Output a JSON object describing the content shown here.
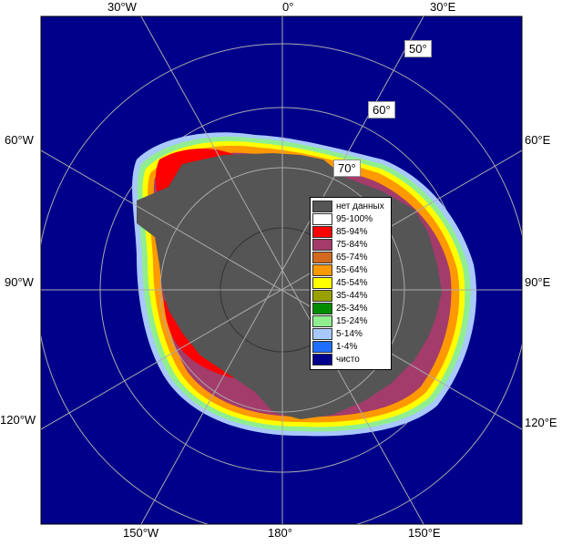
{
  "map": {
    "ocean_color": "#00008b",
    "no_data_color": "#555555",
    "graticule_color": "#aaaaaa",
    "top_labels": [
      "30°W",
      "0°",
      "30°E"
    ],
    "bottom_labels": [
      "150°W",
      "180°",
      "150°E"
    ],
    "left_labels": [
      "60°W",
      "90°W",
      "120°W"
    ],
    "right_labels": [
      "60°E",
      "90°E",
      "120°E"
    ],
    "lat_labels": [
      "50°",
      "60°",
      "70°"
    ]
  },
  "legend": {
    "items": [
      {
        "label": "нет данных",
        "color": "#555555"
      },
      {
        "label": "95-100%",
        "color": "#ffffff"
      },
      {
        "label": "85-94%",
        "color": "#ff0000"
      },
      {
        "label": "75-84%",
        "color": "#a33b6b"
      },
      {
        "label": "65-74%",
        "color": "#d2691e"
      },
      {
        "label": "55-64%",
        "color": "#ff9900"
      },
      {
        "label": "45-54%",
        "color": "#ffff00"
      },
      {
        "label": "35-44%",
        "color": "#9aa000"
      },
      {
        "label": "25-34%",
        "color": "#008c00"
      },
      {
        "label": "15-24%",
        "color": "#90ee90"
      },
      {
        "label": "5-14%",
        "color": "#a8c8ff"
      },
      {
        "label": "1-4%",
        "color": "#1e6fff"
      },
      {
        "label": "чисто",
        "color": "#00008b"
      }
    ]
  }
}
